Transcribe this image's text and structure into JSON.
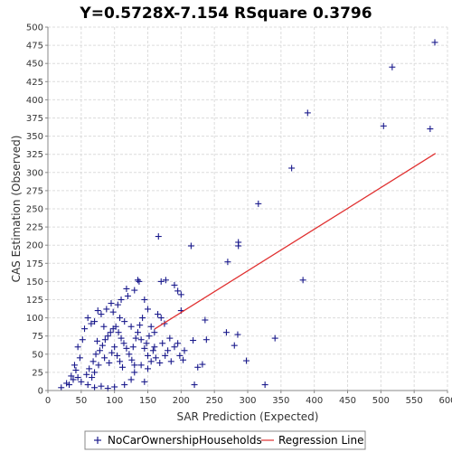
{
  "chart_data": {
    "type": "scatter",
    "title": "Y=0.5728X-7.154    RSquare 0.3796",
    "xlabel": "SAR Prediction (Expected)",
    "ylabel": "CAS Estimation (Observed)",
    "xlim": [
      0,
      600
    ],
    "ylim": [
      0,
      500
    ],
    "x_ticks": [
      0,
      50,
      100,
      150,
      200,
      250,
      300,
      350,
      400,
      450,
      500,
      550,
      600
    ],
    "y_ticks": [
      0,
      25,
      50,
      75,
      100,
      125,
      150,
      175,
      200,
      225,
      250,
      275,
      300,
      325,
      350,
      375,
      400,
      425,
      450,
      475,
      500
    ],
    "grid": true,
    "legend_position": "bottom",
    "series": [
      {
        "name": "NoCarOwnershipHouseholds",
        "marker": "plus",
        "color": "#1a1a8c",
        "points": [
          [
            581,
            479
          ],
          [
            517,
            445
          ],
          [
            390,
            382
          ],
          [
            504,
            364
          ],
          [
            574,
            360
          ],
          [
            366,
            306
          ],
          [
            316,
            257
          ],
          [
            286,
            204
          ],
          [
            286,
            199
          ],
          [
            270,
            177
          ],
          [
            383,
            152
          ],
          [
            166,
            212
          ],
          [
            215,
            199
          ],
          [
            135,
            152
          ],
          [
            137,
            150
          ],
          [
            170,
            150
          ],
          [
            177,
            152
          ],
          [
            190,
            145
          ],
          [
            195,
            137
          ],
          [
            200,
            132
          ],
          [
            200,
            110
          ],
          [
            236,
            97
          ],
          [
            268,
            80
          ],
          [
            285,
            77
          ],
          [
            341,
            72
          ],
          [
            238,
            70
          ],
          [
            218,
            69
          ],
          [
            280,
            62
          ],
          [
            298,
            41
          ],
          [
            326,
            8
          ],
          [
            232,
            36
          ],
          [
            225,
            32
          ],
          [
            220,
            8
          ],
          [
            198,
            48
          ],
          [
            203,
            42
          ],
          [
            183,
            72
          ],
          [
            170,
            100
          ],
          [
            165,
            105
          ],
          [
            150,
            112
          ],
          [
            145,
            125
          ],
          [
            155,
            88
          ],
          [
            160,
            60
          ],
          [
            180,
            55
          ],
          [
            175,
            92
          ],
          [
            160,
            80
          ],
          [
            190,
            60
          ],
          [
            205,
            55
          ],
          [
            150,
            30
          ],
          [
            145,
            12
          ],
          [
            130,
            138
          ],
          [
            120,
            130
          ],
          [
            118,
            140
          ],
          [
            110,
            125
          ],
          [
            105,
            118
          ],
          [
            95,
            120
          ],
          [
            60,
            100
          ],
          [
            55,
            85
          ],
          [
            45,
            60
          ],
          [
            40,
            35
          ],
          [
            35,
            20
          ],
          [
            28,
            10
          ],
          [
            20,
            4
          ],
          [
            32,
            8
          ],
          [
            38,
            15
          ],
          [
            42,
            28
          ],
          [
            48,
            45
          ],
          [
            52,
            70
          ],
          [
            65,
            92
          ],
          [
            70,
            95
          ],
          [
            75,
            110
          ],
          [
            80,
            105
          ],
          [
            88,
            112
          ],
          [
            98,
            108
          ],
          [
            108,
            100
          ],
          [
            115,
            95
          ],
          [
            125,
            88
          ],
          [
            135,
            80
          ],
          [
            140,
            70
          ],
          [
            145,
            58
          ],
          [
            150,
            48
          ],
          [
            155,
            40
          ],
          [
            140,
            35
          ],
          [
            130,
            25
          ],
          [
            125,
            15
          ],
          [
            115,
            8
          ],
          [
            100,
            5
          ],
          [
            90,
            3
          ],
          [
            80,
            6
          ],
          [
            70,
            4
          ],
          [
            60,
            8
          ],
          [
            50,
            12
          ],
          [
            45,
            18
          ],
          [
            58,
            22
          ],
          [
            62,
            30
          ],
          [
            68,
            40
          ],
          [
            72,
            50
          ],
          [
            78,
            55
          ],
          [
            82,
            62
          ],
          [
            86,
            70
          ],
          [
            90,
            75
          ],
          [
            94,
            80
          ],
          [
            98,
            85
          ],
          [
            102,
            88
          ],
          [
            106,
            80
          ],
          [
            110,
            72
          ],
          [
            114,
            65
          ],
          [
            118,
            58
          ],
          [
            122,
            50
          ],
          [
            126,
            42
          ],
          [
            130,
            35
          ],
          [
            85,
            45
          ],
          [
            92,
            38
          ],
          [
            96,
            52
          ],
          [
            100,
            60
          ],
          [
            104,
            48
          ],
          [
            108,
            40
          ],
          [
            112,
            32
          ],
          [
            76,
            35
          ],
          [
            70,
            25
          ],
          [
            66,
            18
          ],
          [
            74,
            68
          ],
          [
            84,
            88
          ],
          [
            128,
            60
          ],
          [
            132,
            72
          ],
          [
            138,
            90
          ],
          [
            142,
            100
          ],
          [
            148,
            65
          ],
          [
            152,
            75
          ],
          [
            158,
            55
          ],
          [
            162,
            45
          ],
          [
            168,
            38
          ],
          [
            172,
            65
          ],
          [
            176,
            48
          ],
          [
            185,
            40
          ],
          [
            195,
            65
          ]
        ]
      },
      {
        "name": "Regression Line",
        "type": "line",
        "color": "#e03030",
        "x": [
          160,
          582
        ],
        "y": [
          84.5,
          326.2
        ]
      }
    ]
  }
}
